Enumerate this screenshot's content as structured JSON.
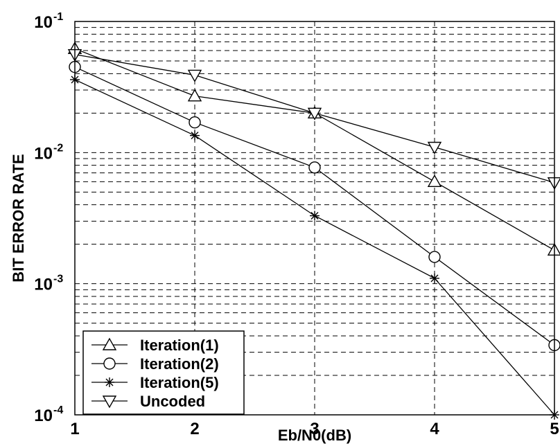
{
  "chart_data": {
    "type": "line",
    "title": "",
    "xlabel": "Eb/N0(dB)",
    "ylabel": "BIT ERROR RATE",
    "x": [
      1,
      2,
      3,
      4,
      5
    ],
    "xlim": [
      1,
      5
    ],
    "ylim": [
      0.0001,
      0.1
    ],
    "yscale": "log",
    "x_tick_labels": [
      "1",
      "2",
      "3",
      "4",
      "5"
    ],
    "y_tick_labels": [
      {
        "base": "10",
        "exp": "-4"
      },
      {
        "base": "10",
        "exp": "-3"
      },
      {
        "base": "10",
        "exp": "-2"
      },
      {
        "base": "10",
        "exp": "-1"
      }
    ],
    "grid": true,
    "legend_position": "lower-left",
    "line_color": "#000000",
    "series": [
      {
        "name": "Iteration(1)",
        "marker": "triangle-up",
        "values": [
          0.062,
          0.027,
          0.02,
          0.006,
          0.0018
        ]
      },
      {
        "name": "Iteration(2)",
        "marker": "circle",
        "values": [
          0.045,
          0.017,
          0.0077,
          0.0016,
          0.00034
        ]
      },
      {
        "name": "Iteration(5)",
        "marker": "star",
        "values": [
          0.036,
          0.0135,
          0.0033,
          0.0011,
          0.0001
        ]
      },
      {
        "name": "Uncoded",
        "marker": "triangle-down",
        "values": [
          0.056,
          0.039,
          0.02,
          0.011,
          0.0059
        ]
      }
    ]
  }
}
